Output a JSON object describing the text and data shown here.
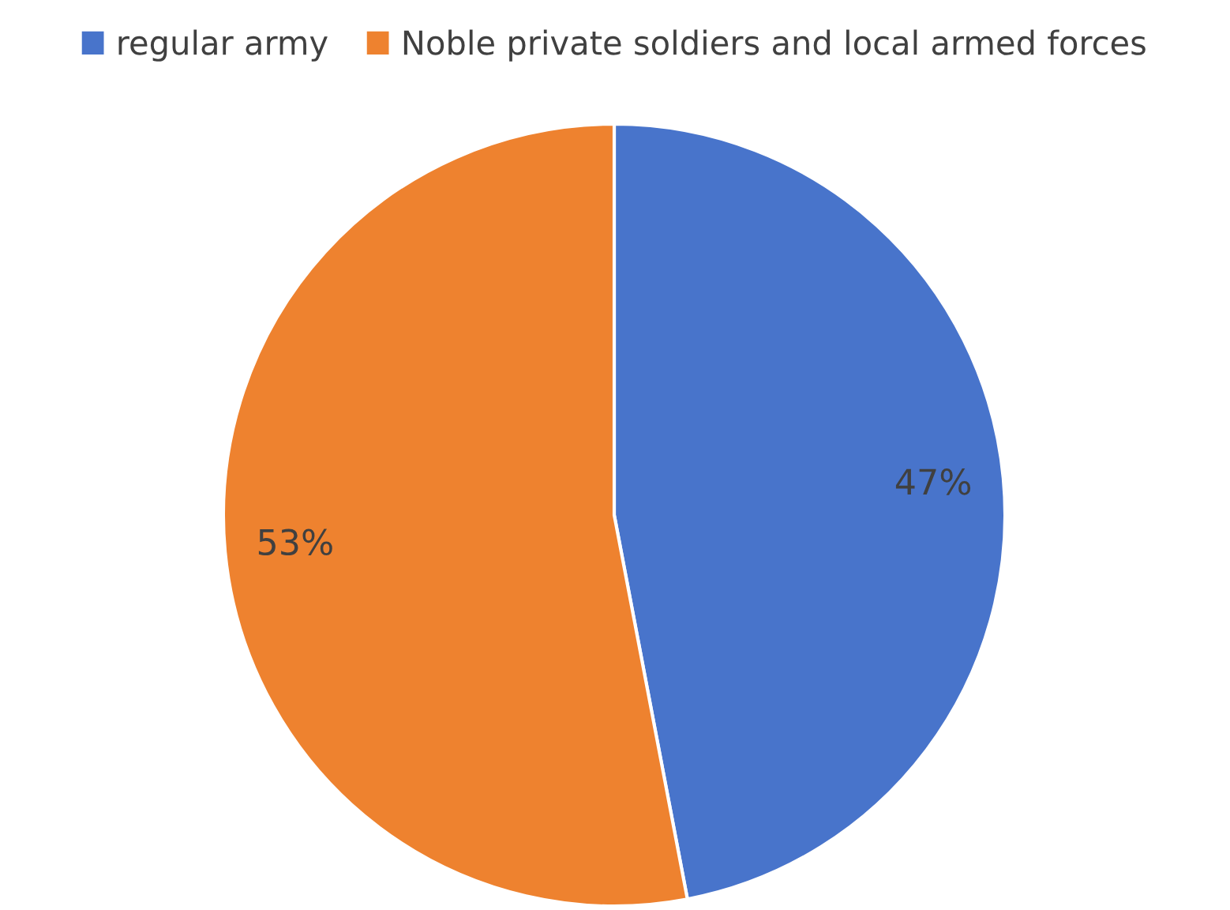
{
  "chart_data": {
    "type": "pie",
    "categories": [
      "regular army",
      "Noble private soldiers and local armed forces"
    ],
    "values": [
      47,
      53
    ],
    "colors": [
      "#4874cb",
      "#ee822f"
    ],
    "value_labels": [
      "47%",
      "53%"
    ],
    "legend": "top"
  }
}
